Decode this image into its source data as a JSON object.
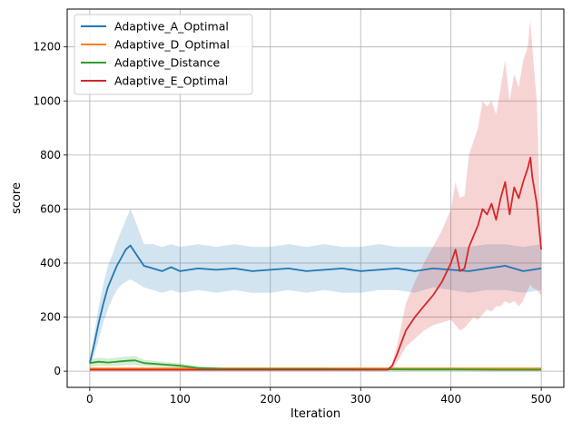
{
  "chart_data": {
    "type": "line",
    "title": "",
    "xlabel": "Iteration",
    "ylabel": "score",
    "xlim": [
      -25,
      525
    ],
    "ylim": [
      -60,
      1340
    ],
    "x_ticks": [
      0,
      100,
      200,
      300,
      400,
      500
    ],
    "y_ticks": [
      0,
      200,
      400,
      600,
      800,
      1000,
      1200
    ],
    "grid": true,
    "legend_position": "top-left",
    "series": [
      {
        "name": "Adaptive_A_Optimal",
        "color": "#1f77b4",
        "x": [
          0,
          5,
          10,
          15,
          20,
          25,
          30,
          35,
          40,
          45,
          50,
          60,
          70,
          80,
          90,
          100,
          120,
          140,
          160,
          180,
          200,
          220,
          240,
          260,
          280,
          300,
          320,
          340,
          360,
          380,
          400,
          420,
          440,
          460,
          480,
          500
        ],
        "y": [
          30,
          100,
          180,
          250,
          310,
          350,
          390,
          420,
          450,
          465,
          440,
          390,
          380,
          370,
          385,
          370,
          380,
          375,
          380,
          370,
          375,
          380,
          370,
          375,
          380,
          370,
          375,
          380,
          370,
          380,
          375,
          370,
          380,
          390,
          370,
          380
        ],
        "band_lower": [
          20,
          60,
          120,
          180,
          230,
          270,
          300,
          320,
          330,
          340,
          330,
          310,
          300,
          290,
          300,
          290,
          300,
          290,
          300,
          290,
          290,
          300,
          290,
          300,
          290,
          290,
          300,
          300,
          290,
          310,
          300,
          290,
          300,
          300,
          290,
          300
        ],
        "band_upper": [
          40,
          140,
          240,
          320,
          390,
          430,
          480,
          520,
          560,
          600,
          560,
          470,
          470,
          460,
          470,
          460,
          470,
          460,
          470,
          460,
          460,
          470,
          460,
          470,
          460,
          460,
          470,
          460,
          460,
          460,
          460,
          460,
          470,
          470,
          460,
          470
        ]
      },
      {
        "name": "Adaptive_D_Optimal",
        "color": "#ff7f0e",
        "x": [
          0,
          100,
          200,
          300,
          400,
          500
        ],
        "y": [
          10,
          10,
          10,
          10,
          10,
          10
        ]
      },
      {
        "name": "Adaptive_Distance",
        "color": "#2ca02c",
        "x": [
          0,
          10,
          20,
          30,
          40,
          50,
          60,
          80,
          100,
          120,
          150,
          200,
          250,
          300,
          350,
          400,
          450,
          500
        ],
        "y": [
          30,
          35,
          32,
          35,
          38,
          40,
          30,
          25,
          20,
          12,
          8,
          8,
          8,
          7,
          6,
          6,
          5,
          5
        ],
        "band_lower": [
          15,
          20,
          18,
          20,
          22,
          24,
          18,
          15,
          12,
          6,
          3,
          3,
          3,
          2,
          2,
          2,
          1,
          1
        ],
        "band_upper": [
          45,
          50,
          46,
          50,
          54,
          56,
          42,
          35,
          28,
          18,
          13,
          13,
          13,
          12,
          10,
          10,
          9,
          9
        ]
      },
      {
        "name": "Adaptive_E_Optimal",
        "color": "#d62728",
        "x": [
          0,
          100,
          200,
          300,
          330,
          335,
          340,
          350,
          360,
          370,
          380,
          390,
          400,
          405,
          410,
          415,
          420,
          425,
          430,
          435,
          440,
          445,
          450,
          455,
          460,
          465,
          470,
          475,
          480,
          485,
          488,
          490,
          495,
          500
        ],
        "y": [
          5,
          5,
          5,
          5,
          5,
          20,
          60,
          150,
          200,
          240,
          280,
          330,
          400,
          450,
          370,
          380,
          460,
          500,
          540,
          600,
          580,
          620,
          560,
          640,
          700,
          580,
          680,
          640,
          700,
          750,
          790,
          720,
          620,
          450
        ],
        "band_lower": [
          3,
          3,
          3,
          3,
          3,
          10,
          30,
          90,
          120,
          150,
          170,
          180,
          190,
          170,
          150,
          160,
          180,
          200,
          190,
          210,
          230,
          220,
          240,
          240,
          260,
          250,
          260,
          240,
          260,
          300,
          320,
          310,
          300,
          280
        ],
        "band_upper": [
          7,
          7,
          7,
          7,
          7,
          30,
          90,
          250,
          330,
          400,
          460,
          520,
          600,
          700,
          640,
          650,
          800,
          850,
          900,
          1000,
          980,
          1000,
          950,
          1050,
          1150,
          1000,
          1100,
          1050,
          1150,
          1200,
          1300,
          1200,
          1000,
          450
        ]
      }
    ]
  }
}
